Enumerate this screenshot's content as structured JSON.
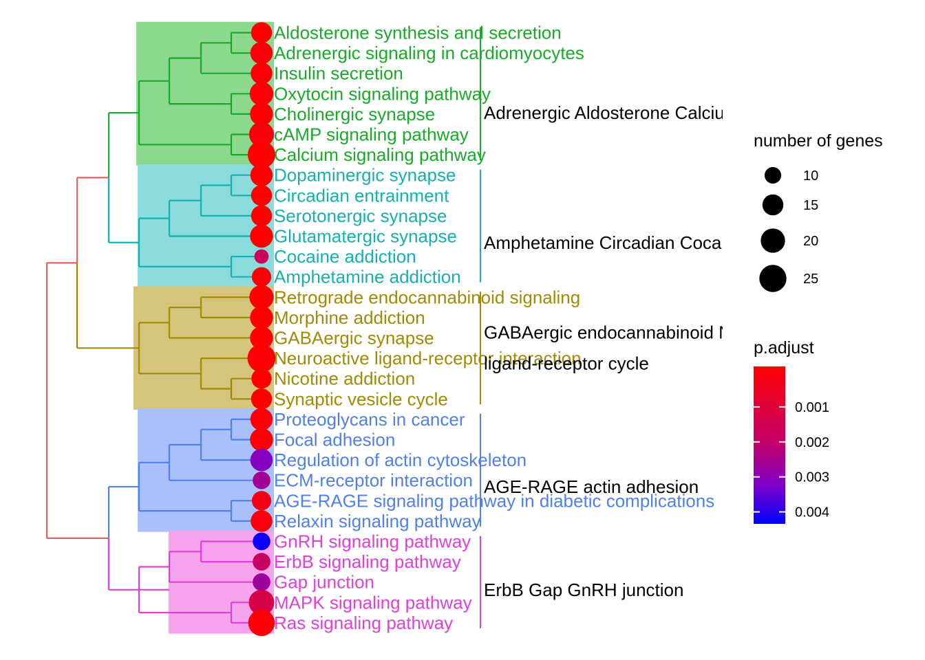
{
  "chart_data": {
    "type": "tree",
    "title": "",
    "terms": [
      {
        "label": "Aldosterone synthesis and secretion",
        "cluster": 0,
        "count": 15,
        "p_adjust": 5e-05
      },
      {
        "label": "Adrenergic signaling in cardiomyocytes",
        "cluster": 0,
        "count": 17,
        "p_adjust": 0.0003
      },
      {
        "label": "Insulin secretion",
        "cluster": 0,
        "count": 16,
        "p_adjust": 0.0002
      },
      {
        "label": "Oxytocin signaling pathway",
        "cluster": 0,
        "count": 19,
        "p_adjust": 0.0002
      },
      {
        "label": "Cholinergic synapse",
        "cluster": 0,
        "count": 18,
        "p_adjust": 0.0001
      },
      {
        "label": "cAMP signaling pathway",
        "cluster": 0,
        "count": 21,
        "p_adjust": 0.0003
      },
      {
        "label": "Calcium signaling pathway",
        "cluster": 0,
        "count": 26,
        "p_adjust": 0.0001
      },
      {
        "label": "Dopaminergic synapse",
        "cluster": 1,
        "count": 17,
        "p_adjust": 0.0001
      },
      {
        "label": "Circadian entrainment",
        "cluster": 1,
        "count": 15,
        "p_adjust": 5e-05
      },
      {
        "label": "Serotonergic synapse",
        "cluster": 1,
        "count": 15,
        "p_adjust": 0.0001
      },
      {
        "label": "Glutamatergic synapse",
        "cluster": 1,
        "count": 18,
        "p_adjust": 5e-05
      },
      {
        "label": "Cocaine addiction",
        "cluster": 1,
        "count": 8,
        "p_adjust": 0.0018
      },
      {
        "label": "Amphetamine addiction",
        "cluster": 1,
        "count": 13,
        "p_adjust": 0.0002
      },
      {
        "label": "Retrograde endocannabinoid signaling",
        "cluster": 2,
        "count": 20,
        "p_adjust": 0.0001
      },
      {
        "label": "Morphine addiction",
        "cluster": 2,
        "count": 18,
        "p_adjust": 0.0001
      },
      {
        "label": "GABAergic synapse",
        "cluster": 2,
        "count": 18,
        "p_adjust": 0.0001
      },
      {
        "label": "Neuroactive ligand-receptor interaction",
        "cluster": 2,
        "count": 27,
        "p_adjust": 0.0002
      },
      {
        "label": "Nicotine addiction",
        "cluster": 2,
        "count": 14,
        "p_adjust": 5e-05
      },
      {
        "label": "Synaptic vesicle cycle",
        "cluster": 2,
        "count": 15,
        "p_adjust": 0.0001
      },
      {
        "label": "Proteoglycans in cancer",
        "cluster": 3,
        "count": 17,
        "p_adjust": 0.0002
      },
      {
        "label": "Focal adhesion",
        "cluster": 3,
        "count": 18,
        "p_adjust": 0.0002
      },
      {
        "label": "Regulation of actin cytoskeleton",
        "cluster": 3,
        "count": 17,
        "p_adjust": 0.0031
      },
      {
        "label": "ECM-receptor interaction",
        "cluster": 3,
        "count": 11,
        "p_adjust": 0.0026
      },
      {
        "label": "AGE-RAGE signaling pathway in diabetic complications",
        "cluster": 3,
        "count": 13,
        "p_adjust": 0.0005
      },
      {
        "label": "Relaxin signaling pathway",
        "cluster": 3,
        "count": 16,
        "p_adjust": 0.0003
      },
      {
        "label": "GnRH signaling pathway",
        "cluster": 4,
        "count": 11,
        "p_adjust": 0.0041
      },
      {
        "label": "ErbB signaling pathway",
        "cluster": 4,
        "count": 11,
        "p_adjust": 0.0019
      },
      {
        "label": "Gap junction",
        "cluster": 4,
        "count": 11,
        "p_adjust": 0.0027
      },
      {
        "label": "MAPK signaling pathway",
        "cluster": 4,
        "count": 22,
        "p_adjust": 0.0014
      },
      {
        "label": "Ras signaling pathway",
        "cluster": 4,
        "count": 24,
        "p_adjust": 0.0002
      }
    ],
    "clusters": [
      {
        "label": "Adrenergic Aldosterone Calcium",
        "color": "#1aaa2a",
        "fill": "#8bd88f"
      },
      {
        "label": "Amphetamine Circadian Cocaine",
        "color": "#16b0b0",
        "fill": "#8adbdb"
      },
      {
        "label": "GABAergic endocannabinoid Neuroactive ligand-receptor cycle",
        "color": "#a28a08",
        "fill": "#d4c57a"
      },
      {
        "label": "AGE-RAGE actin adhesion",
        "color": "#5080e8",
        "fill": "#a9c0fb"
      },
      {
        "label": "ErbB Gap GnRH junction",
        "color": "#e040d8",
        "fill": "#f5a3ec"
      }
    ],
    "root_color": "#e8605e",
    "legend_size": {
      "title": "number of genes",
      "breaks": [
        10,
        15,
        20,
        25
      ]
    },
    "legend_color": {
      "title": "p.adjust",
      "breaks": [
        0.001,
        0.002,
        0.003,
        0.004
      ],
      "tick_labels": [
        "0.001",
        "0.002",
        "0.003",
        "0.004"
      ],
      "range": [
        0,
        0.0045
      ],
      "low_color": "#ff0000",
      "high_color": "#0000ff"
    }
  }
}
